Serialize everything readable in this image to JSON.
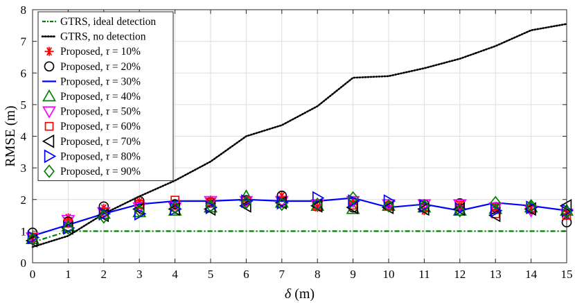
{
  "chart_data": {
    "type": "line",
    "xlabel": "δ (m)",
    "ylabel": "RMSE (m)",
    "xlim": [
      0,
      15
    ],
    "ylim": [
      0,
      8
    ],
    "xticks": [
      "0",
      "1",
      "2",
      "3",
      "4",
      "5",
      "6",
      "7",
      "8",
      "9",
      "10",
      "11",
      "12",
      "13",
      "14",
      "15"
    ],
    "yticks": [
      "0",
      "1",
      "2",
      "3",
      "4",
      "5",
      "6",
      "7",
      "8"
    ],
    "grid": true,
    "legend_position": "top-left",
    "x": [
      0,
      1,
      2,
      3,
      4,
      5,
      6,
      7,
      8,
      9,
      10,
      11,
      12,
      13,
      14,
      15
    ],
    "series": [
      {
        "name": "GTRS, ideal detection",
        "style": "dashdot",
        "color": "#008000",
        "marker": "none",
        "values": [
          0.65,
          1.0,
          1.0,
          1.0,
          1.0,
          1.0,
          1.0,
          1.0,
          1.0,
          1.0,
          1.0,
          1.0,
          1.0,
          1.0,
          1.0,
          1.0
        ]
      },
      {
        "name": "GTRS, no detection",
        "style": "dotted",
        "color": "#000000",
        "marker": "none",
        "values": [
          0.5,
          0.85,
          1.55,
          2.1,
          2.6,
          3.2,
          4.0,
          4.35,
          4.95,
          5.85,
          5.9,
          6.15,
          6.45,
          6.85,
          7.35,
          7.55
        ]
      },
      {
        "name": "Proposed, τ = 10%",
        "style": "none",
        "color": "#ff0000",
        "marker": "asterisk",
        "values": [
          0.8,
          1.42,
          1.72,
          1.92,
          1.8,
          1.98,
          1.95,
          2.1,
          1.75,
          1.95,
          1.8,
          1.65,
          1.8,
          1.75,
          1.7,
          1.55
        ]
      },
      {
        "name": "Proposed, τ = 20%",
        "style": "none",
        "color": "#000000",
        "marker": "circle",
        "values": [
          0.95,
          1.3,
          1.78,
          1.95,
          1.85,
          1.9,
          1.98,
          2.12,
          1.85,
          1.75,
          1.8,
          1.85,
          1.88,
          1.75,
          1.7,
          1.28
        ]
      },
      {
        "name": "Proposed, τ = 30%",
        "style": "solid",
        "color": "#0000ff",
        "marker": "none",
        "values": [
          0.85,
          1.2,
          1.55,
          1.85,
          1.95,
          1.95,
          2.0,
          1.95,
          1.95,
          2.05,
          1.75,
          1.85,
          1.65,
          1.9,
          1.8,
          1.65
        ]
      },
      {
        "name": "Proposed, τ = 40%",
        "style": "none",
        "color": "#008000",
        "marker": "triangle-up",
        "values": [
          0.75,
          1.15,
          1.55,
          1.6,
          1.65,
          1.75,
          2.1,
          1.9,
          1.8,
          1.7,
          1.8,
          1.75,
          1.65,
          1.7,
          1.75,
          1.65
        ]
      },
      {
        "name": "Proposed, τ = 50%",
        "style": "none",
        "color": "#ff00ff",
        "marker": "triangle-down",
        "values": [
          0.8,
          1.35,
          1.6,
          1.75,
          1.75,
          1.95,
          1.95,
          1.95,
          1.85,
          1.95,
          1.85,
          1.85,
          1.85,
          1.75,
          1.65,
          1.55
        ]
      },
      {
        "name": "Proposed, τ = 60%",
        "style": "none",
        "color": "#ff0000",
        "marker": "square",
        "values": [
          0.8,
          1.25,
          1.6,
          1.85,
          1.98,
          1.92,
          1.95,
          1.95,
          1.8,
          1.82,
          1.8,
          1.75,
          1.82,
          1.55,
          1.7,
          1.5
        ]
      },
      {
        "name": "Proposed, τ = 70%",
        "style": "none",
        "color": "#000000",
        "marker": "triangle-left",
        "values": [
          0.7,
          1.1,
          1.5,
          1.7,
          1.7,
          1.7,
          1.8,
          1.9,
          1.8,
          1.75,
          1.75,
          1.7,
          1.7,
          1.5,
          1.7,
          1.8
        ]
      },
      {
        "name": "Proposed, τ = 80%",
        "style": "none",
        "color": "#0000ff",
        "marker": "triangle-right",
        "values": [
          0.8,
          1.1,
          1.55,
          1.55,
          1.7,
          1.75,
          1.95,
          1.9,
          2.05,
          1.95,
          1.95,
          1.8,
          1.7,
          1.65,
          1.75,
          1.65
        ]
      },
      {
        "name": "Proposed, τ = 90%",
        "style": "none",
        "color": "#008000",
        "marker": "diamond",
        "values": [
          0.75,
          1.1,
          1.45,
          1.65,
          1.75,
          1.8,
          1.9,
          1.85,
          1.85,
          2.05,
          1.8,
          1.8,
          1.65,
          1.9,
          1.8,
          1.6
        ]
      }
    ]
  }
}
